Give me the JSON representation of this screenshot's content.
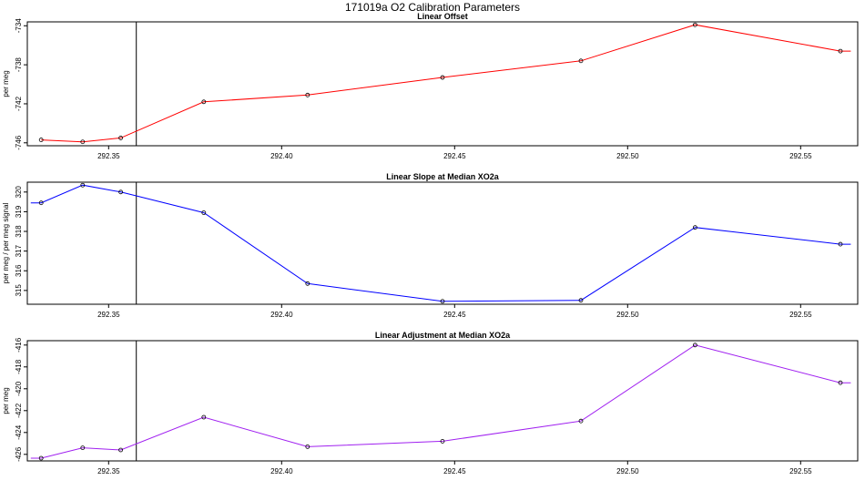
{
  "figure_title": "171019a   O2 Calibration Parameters",
  "chart_data": [
    {
      "type": "line",
      "title": "Linear Offset",
      "xlabel": "",
      "ylabel": "per meg",
      "color": "#ff0000",
      "x": [
        292.3305,
        292.3425,
        292.3535,
        292.3775,
        292.4075,
        292.4465,
        292.4865,
        292.5195,
        292.5615
      ],
      "values": [
        -745.7,
        -745.9,
        -745.5,
        -741.8,
        -741.1,
        -739.3,
        -737.6,
        -733.9,
        -736.6
      ],
      "x_start": 292.3305,
      "y_start": -745.7,
      "x_end": 292.5645,
      "y_end": -736.6,
      "xlim": [
        292.3265,
        292.5665
      ],
      "ylim": [
        -746.3,
        -733.6
      ],
      "xticks": [
        "292.35",
        "292.40",
        "292.45",
        "292.50",
        "292.55"
      ],
      "yticks": [
        "-746",
        "-742",
        "-738",
        "-734"
      ],
      "vline_x": 292.358
    },
    {
      "type": "line",
      "title": "Linear Slope at Median XO2a",
      "xlabel": "",
      "ylabel": "per meg / per meg signal",
      "color": "#0000ff",
      "x": [
        292.3305,
        292.3425,
        292.3535,
        292.3775,
        292.4075,
        292.4465,
        292.4865,
        292.5195,
        292.5615
      ],
      "values": [
        319.45,
        320.35,
        320.0,
        318.95,
        315.35,
        314.45,
        314.5,
        318.2,
        317.35
      ],
      "x_start": 292.3275,
      "y_start": 319.45,
      "x_end": 292.5645,
      "y_end": 317.35,
      "xlim": [
        292.3265,
        292.5665
      ],
      "ylim": [
        314.3,
        320.5
      ],
      "xticks": [
        "292.35",
        "292.40",
        "292.45",
        "292.50",
        "292.55"
      ],
      "yticks": [
        "315",
        "316",
        "317",
        "318",
        "319",
        "320"
      ],
      "vline_x": 292.358
    },
    {
      "type": "line",
      "title": "Linear Adjustment at Median XO2a",
      "xlabel": "",
      "ylabel": "per meg",
      "color": "#a020f0",
      "x": [
        292.3305,
        292.3425,
        292.3535,
        292.3775,
        292.4075,
        292.4465,
        292.4865,
        292.5195,
        292.5615
      ],
      "values": [
        -426.35,
        -425.4,
        -425.6,
        -422.6,
        -425.3,
        -424.8,
        -422.95,
        -416.0,
        -419.45
      ],
      "x_start": 292.3275,
      "y_start": -426.35,
      "x_end": 292.5645,
      "y_end": -419.45,
      "xlim": [
        292.3265,
        292.5665
      ],
      "ylim": [
        -426.6,
        -415.6
      ],
      "xticks": [
        "292.35",
        "292.40",
        "292.45",
        "292.50",
        "292.55"
      ],
      "yticks": [
        "-426",
        "-424",
        "-422",
        "-420",
        "-418",
        "-416"
      ],
      "vline_x": 292.358
    }
  ]
}
